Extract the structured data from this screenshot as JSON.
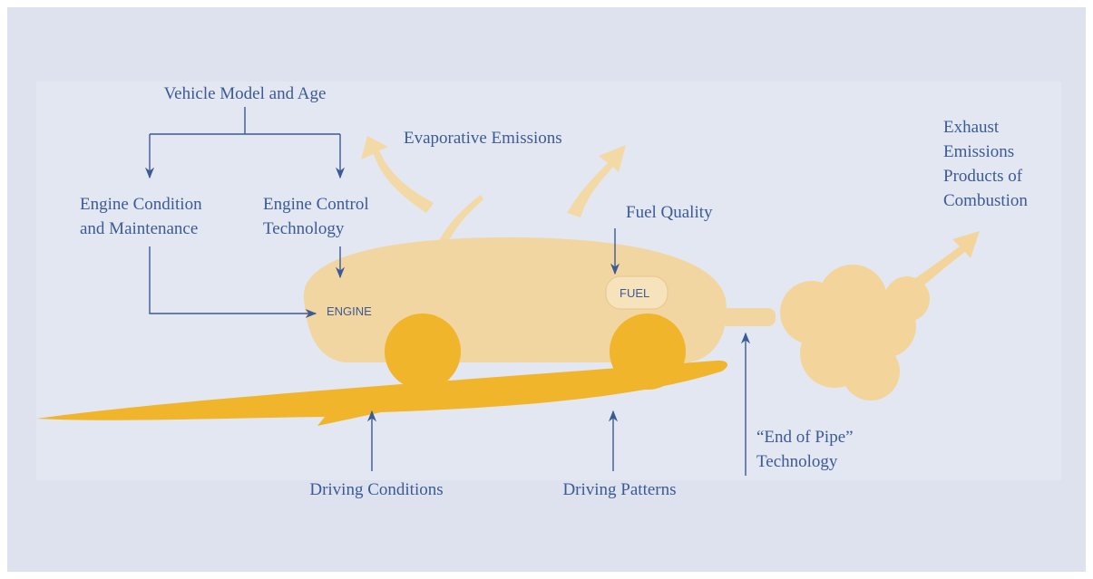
{
  "labels": {
    "vehicle_model": "Vehicle Model and Age",
    "engine_condition": [
      "Engine Condition",
      "and Maintenance"
    ],
    "engine_control": [
      "Engine Control",
      "Technology"
    ],
    "evaporative": "Evaporative Emissions",
    "fuel_quality": "Fuel Quality",
    "exhaust": [
      "Exhaust",
      "Emissions",
      "Products of",
      "Combustion"
    ],
    "engine": "ENGINE",
    "fuel": "FUEL",
    "driving_conditions": "Driving Conditions",
    "driving_patterns": "Driving Patterns",
    "end_of_pipe": [
      "“End of Pipe”",
      "Technology"
    ]
  }
}
